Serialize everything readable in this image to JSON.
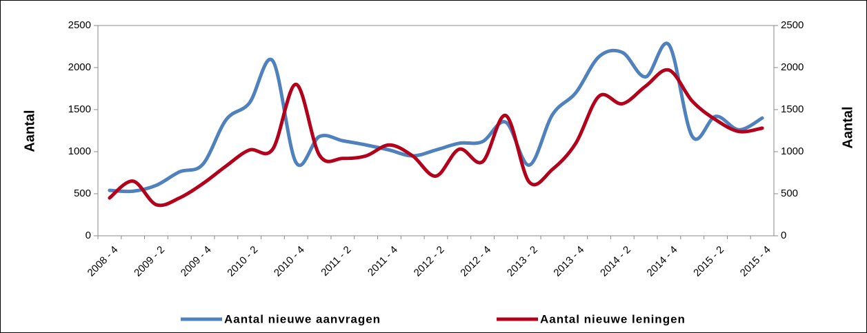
{
  "chart_data": {
    "type": "line",
    "categories": [
      "2008 - 4",
      null,
      "2009 - 2",
      null,
      "2009 - 4",
      null,
      "2010 - 2",
      null,
      "2010 - 4",
      null,
      "2011 - 2",
      null,
      "2011 - 4",
      null,
      "2012 - 2",
      null,
      "2012 - 4",
      null,
      "2013 - 2",
      null,
      "2013 - 4",
      null,
      "2014 - 2",
      null,
      "2014 - 4",
      null,
      "2015 - 2",
      null,
      "2015 - 4"
    ],
    "series": [
      {
        "name": "Aantal nieuwe aanvragen",
        "color": "#4f81bd",
        "values": [
          540,
          530,
          600,
          760,
          850,
          1380,
          1580,
          2080,
          870,
          1180,
          1130,
          1080,
          1020,
          950,
          1020,
          1100,
          1120,
          1350,
          840,
          1440,
          1700,
          2130,
          2180,
          1890,
          2270,
          1180,
          1420,
          1260,
          1400
        ]
      },
      {
        "name": "Aantal nieuwe leningen",
        "color": "#b3001b",
        "axis": "y2",
        "values": [
          450,
          650,
          370,
          450,
          620,
          830,
          1020,
          1030,
          1800,
          960,
          920,
          950,
          1080,
          950,
          710,
          1030,
          880,
          1430,
          640,
          790,
          1100,
          1660,
          1570,
          1780,
          1970,
          1600,
          1380,
          1240,
          1280
        ]
      }
    ],
    "ylabel": "Aantal",
    "y2label": "Aantal",
    "ylim": [
      0,
      2500
    ],
    "yticks": [
      0,
      500,
      1000,
      1500,
      2000,
      2500
    ],
    "y2lim": [
      0,
      2500
    ],
    "y2ticks": [
      0,
      500,
      1000,
      1500,
      2000,
      2500
    ],
    "legend": "bottom"
  }
}
